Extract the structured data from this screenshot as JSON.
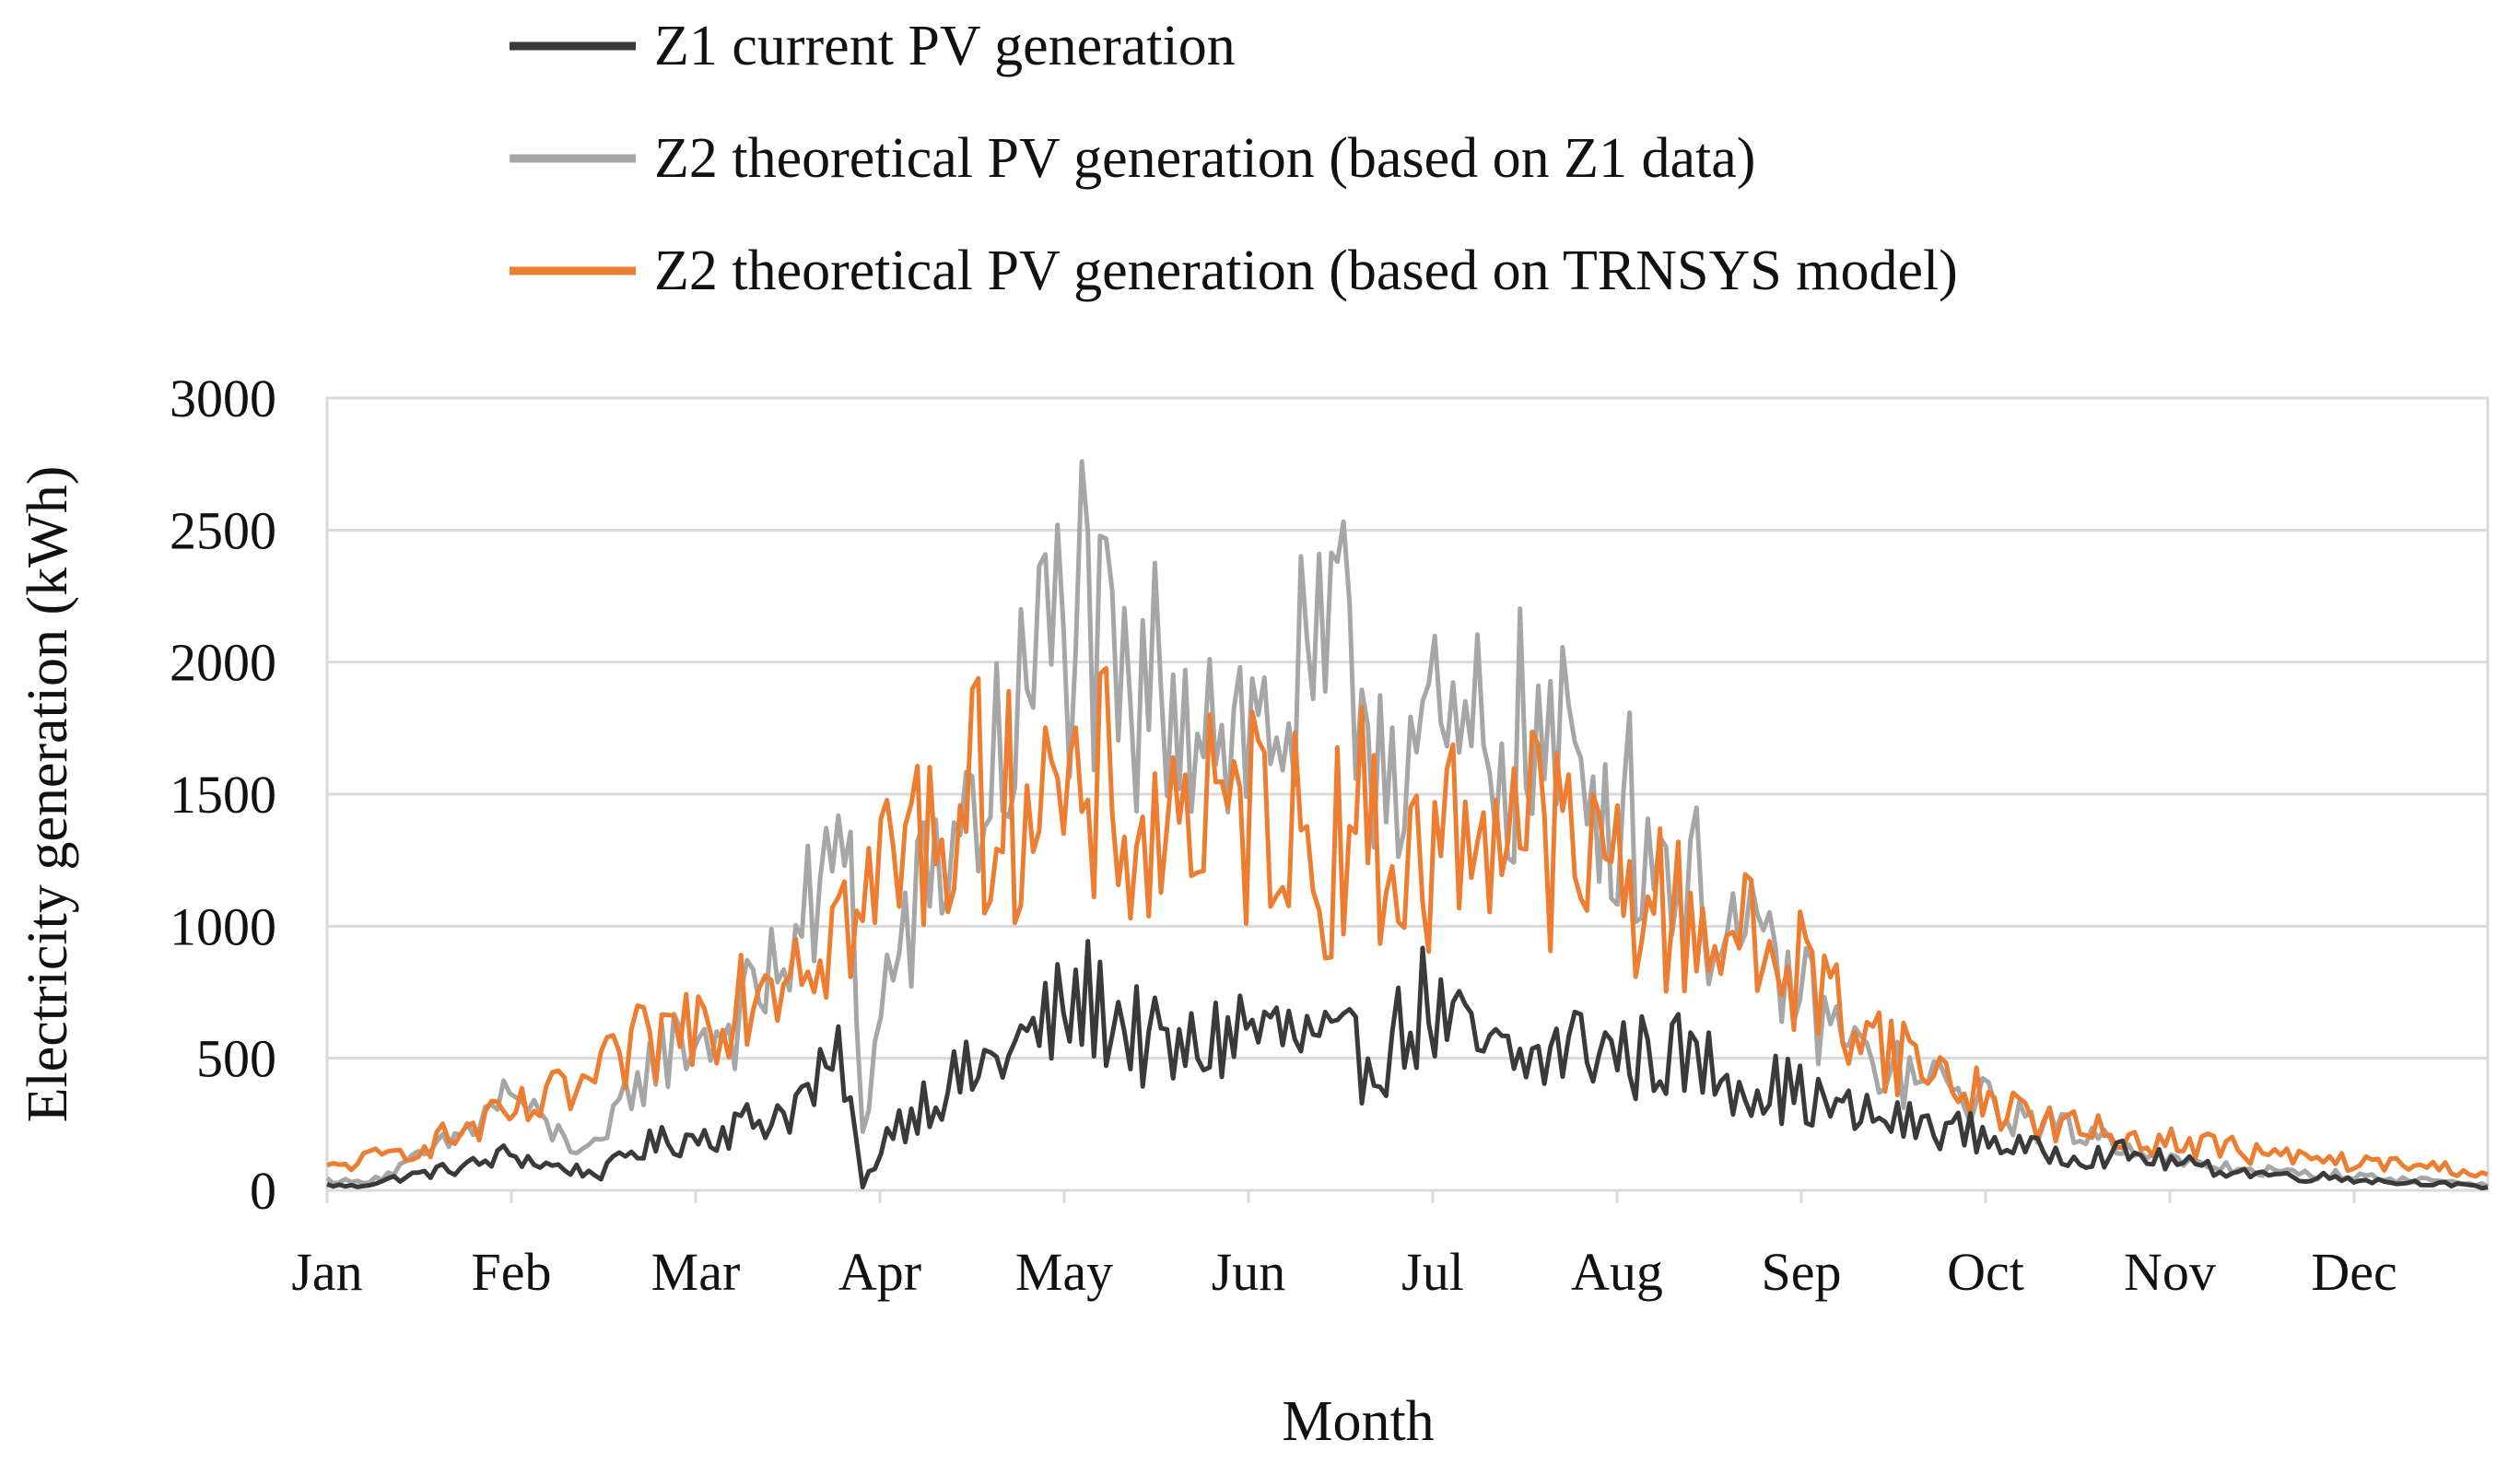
{
  "chart_data": {
    "type": "line",
    "title": "",
    "xlabel": "Month",
    "ylabel": "Electricity generation (kWh)",
    "ylim": [
      0,
      3000
    ],
    "yticks": [
      "0",
      "500",
      "1000",
      "1500",
      "2000",
      "2500",
      "3000"
    ],
    "ytick_values": [
      0,
      500,
      1000,
      1500,
      2000,
      2500,
      3000
    ],
    "xticks": [
      "Jan",
      "Feb",
      "Mar",
      "Apr",
      "May",
      "Jun",
      "Jul",
      "Aug",
      "Sep",
      "Oct",
      "Nov",
      "Dec"
    ],
    "xlim_days": [
      0,
      355
    ],
    "grid": true,
    "legend_position": "top",
    "colors": {
      "z1": "#3a3a3a",
      "z2_z1data": "#a6a6a6",
      "z2_trnsys": "#ed7d31",
      "grid": "#d9d9d9"
    },
    "series": [
      {
        "name": "Z1 current PV generation",
        "key": "z1",
        "note": "daily values (kWh), anchor points at day index",
        "anchors": [
          [
            0,
            20
          ],
          [
            5,
            15
          ],
          [
            10,
            40
          ],
          [
            15,
            60
          ],
          [
            20,
            80
          ],
          [
            25,
            100
          ],
          [
            30,
            140
          ],
          [
            35,
            100
          ],
          [
            40,
            80
          ],
          [
            45,
            60
          ],
          [
            50,
            150
          ],
          [
            55,
            180
          ],
          [
            60,
            200
          ],
          [
            65,
            230
          ],
          [
            70,
            260
          ],
          [
            75,
            300
          ],
          [
            80,
            380
          ],
          [
            85,
            480
          ],
          [
            88,
            10
          ],
          [
            92,
            220
          ],
          [
            96,
            300
          ],
          [
            100,
            380
          ],
          [
            105,
            420
          ],
          [
            110,
            500
          ],
          [
            115,
            560
          ],
          [
            120,
            650
          ],
          [
            125,
            720
          ],
          [
            130,
            650
          ],
          [
            135,
            550
          ],
          [
            140,
            500
          ],
          [
            145,
            560
          ],
          [
            150,
            620
          ],
          [
            155,
            600
          ],
          [
            160,
            560
          ],
          [
            165,
            520
          ],
          [
            170,
            500
          ],
          [
            175,
            560
          ],
          [
            180,
            700
          ],
          [
            185,
            600
          ],
          [
            190,
            520
          ],
          [
            195,
            480
          ],
          [
            200,
            500
          ],
          [
            205,
            560
          ],
          [
            210,
            540
          ],
          [
            215,
            500
          ],
          [
            220,
            520
          ],
          [
            225,
            480
          ],
          [
            230,
            450
          ],
          [
            235,
            400
          ],
          [
            240,
            380
          ],
          [
            245,
            330
          ],
          [
            250,
            290
          ],
          [
            255,
            270
          ],
          [
            260,
            250
          ],
          [
            265,
            240
          ],
          [
            270,
            220
          ],
          [
            275,
            180
          ],
          [
            280,
            150
          ],
          [
            285,
            140
          ],
          [
            290,
            130
          ],
          [
            295,
            140
          ],
          [
            300,
            120
          ],
          [
            305,
            100
          ],
          [
            310,
            80
          ],
          [
            315,
            70
          ],
          [
            320,
            60
          ],
          [
            325,
            50
          ],
          [
            330,
            50
          ],
          [
            335,
            40
          ],
          [
            340,
            30
          ],
          [
            345,
            30
          ],
          [
            350,
            20
          ],
          [
            355,
            10
          ]
        ],
        "amplitude": 0.35
      },
      {
        "name": "Z2 theoretical PV generation (based on Z1 data)",
        "key": "z2_z1data",
        "note": "daily values (kWh), anchor points at day index",
        "anchors": [
          [
            0,
            40
          ],
          [
            5,
            30
          ],
          [
            10,
            60
          ],
          [
            15,
            120
          ],
          [
            20,
            180
          ],
          [
            25,
            260
          ],
          [
            30,
            380
          ],
          [
            35,
            250
          ],
          [
            40,
            180
          ],
          [
            45,
            150
          ],
          [
            50,
            400
          ],
          [
            55,
            520
          ],
          [
            60,
            580
          ],
          [
            65,
            600
          ],
          [
            70,
            700
          ],
          [
            75,
            900
          ],
          [
            80,
            1050
          ],
          [
            84,
            1200
          ],
          [
            86,
            1450
          ],
          [
            88,
            200
          ],
          [
            92,
            800
          ],
          [
            96,
            1000
          ],
          [
            100,
            1200
          ],
          [
            104,
            1400
          ],
          [
            108,
            1500
          ],
          [
            112,
            1700
          ],
          [
            116,
            1900
          ],
          [
            120,
            2150
          ],
          [
            124,
            2200
          ],
          [
            128,
            1900
          ],
          [
            132,
            1700
          ],
          [
            136,
            1900
          ],
          [
            140,
            2000
          ],
          [
            144,
            1900
          ],
          [
            148,
            1800
          ],
          [
            152,
            1700
          ],
          [
            156,
            1800
          ],
          [
            160,
            1850
          ],
          [
            164,
            1900
          ],
          [
            168,
            2000
          ],
          [
            172,
            1800
          ],
          [
            176,
            1700
          ],
          [
            180,
            1700
          ],
          [
            184,
            1600
          ],
          [
            188,
            1650
          ],
          [
            192,
            1700
          ],
          [
            196,
            1700
          ],
          [
            200,
            1650
          ],
          [
            204,
            1600
          ],
          [
            208,
            1550
          ],
          [
            212,
            1500
          ],
          [
            216,
            1350
          ],
          [
            220,
            1250
          ],
          [
            224,
            1150
          ],
          [
            228,
            1050
          ],
          [
            232,
            950
          ],
          [
            236,
            850
          ],
          [
            240,
            800
          ],
          [
            244,
            700
          ],
          [
            248,
            600
          ],
          [
            252,
            500
          ],
          [
            256,
            460
          ],
          [
            260,
            420
          ],
          [
            264,
            400
          ],
          [
            268,
            370
          ],
          [
            272,
            330
          ],
          [
            276,
            300
          ],
          [
            280,
            260
          ],
          [
            284,
            240
          ],
          [
            288,
            220
          ],
          [
            292,
            200
          ],
          [
            296,
            180
          ],
          [
            300,
            130
          ],
          [
            305,
            100
          ],
          [
            310,
            90
          ],
          [
            315,
            80
          ],
          [
            320,
            70
          ],
          [
            325,
            60
          ],
          [
            330,
            60
          ],
          [
            335,
            50
          ],
          [
            340,
            40
          ],
          [
            345,
            40
          ],
          [
            350,
            30
          ],
          [
            355,
            20
          ]
        ],
        "amplitude": 0.3
      },
      {
        "name": "Z2 theoretical PV generation (based on TRNSYS model)",
        "key": "z2_trnsys",
        "note": "daily values (kWh), anchor points at day index",
        "anchors": [
          [
            0,
            80
          ],
          [
            5,
            110
          ],
          [
            10,
            130
          ],
          [
            15,
            170
          ],
          [
            20,
            200
          ],
          [
            25,
            240
          ],
          [
            30,
            280
          ],
          [
            35,
            320
          ],
          [
            40,
            370
          ],
          [
            45,
            420
          ],
          [
            50,
            520
          ],
          [
            55,
            580
          ],
          [
            60,
            650
          ],
          [
            65,
            720
          ],
          [
            70,
            800
          ],
          [
            75,
            900
          ],
          [
            80,
            980
          ],
          [
            85,
            1050
          ],
          [
            88,
            1000
          ],
          [
            92,
            1250
          ],
          [
            96,
            1300
          ],
          [
            100,
            1400
          ],
          [
            104,
            1450
          ],
          [
            108,
            1500
          ],
          [
            112,
            1450
          ],
          [
            116,
            1600
          ],
          [
            120,
            1450
          ],
          [
            124,
            1300
          ],
          [
            128,
            1550
          ],
          [
            132,
            1350
          ],
          [
            136,
            1300
          ],
          [
            140,
            1500
          ],
          [
            144,
            1400
          ],
          [
            148,
            1300
          ],
          [
            152,
            1450
          ],
          [
            156,
            1500
          ],
          [
            160,
            1300
          ],
          [
            164,
            1200
          ],
          [
            168,
            1500
          ],
          [
            172,
            1300
          ],
          [
            176,
            1250
          ],
          [
            180,
            1200
          ],
          [
            184,
            1350
          ],
          [
            188,
            1400
          ],
          [
            192,
            1450
          ],
          [
            196,
            1450
          ],
          [
            200,
            1350
          ],
          [
            204,
            1250
          ],
          [
            208,
            1200
          ],
          [
            212,
            1250
          ],
          [
            216,
            1100
          ],
          [
            220,
            1050
          ],
          [
            224,
            1000
          ],
          [
            228,
            1050
          ],
          [
            232,
            950
          ],
          [
            236,
            900
          ],
          [
            240,
            850
          ],
          [
            244,
            800
          ],
          [
            248,
            700
          ],
          [
            252,
            650
          ],
          [
            256,
            550
          ],
          [
            260,
            500
          ],
          [
            264,
            450
          ],
          [
            268,
            400
          ],
          [
            272,
            350
          ],
          [
            276,
            320
          ],
          [
            280,
            280
          ],
          [
            284,
            250
          ],
          [
            288,
            230
          ],
          [
            292,
            210
          ],
          [
            296,
            200
          ],
          [
            300,
            190
          ],
          [
            305,
            180
          ],
          [
            310,
            170
          ],
          [
            315,
            150
          ],
          [
            320,
            130
          ],
          [
            325,
            120
          ],
          [
            330,
            110
          ],
          [
            335,
            100
          ],
          [
            340,
            100
          ],
          [
            345,
            90
          ],
          [
            350,
            80
          ],
          [
            355,
            60
          ]
        ],
        "amplitude": 0.32
      }
    ]
  }
}
